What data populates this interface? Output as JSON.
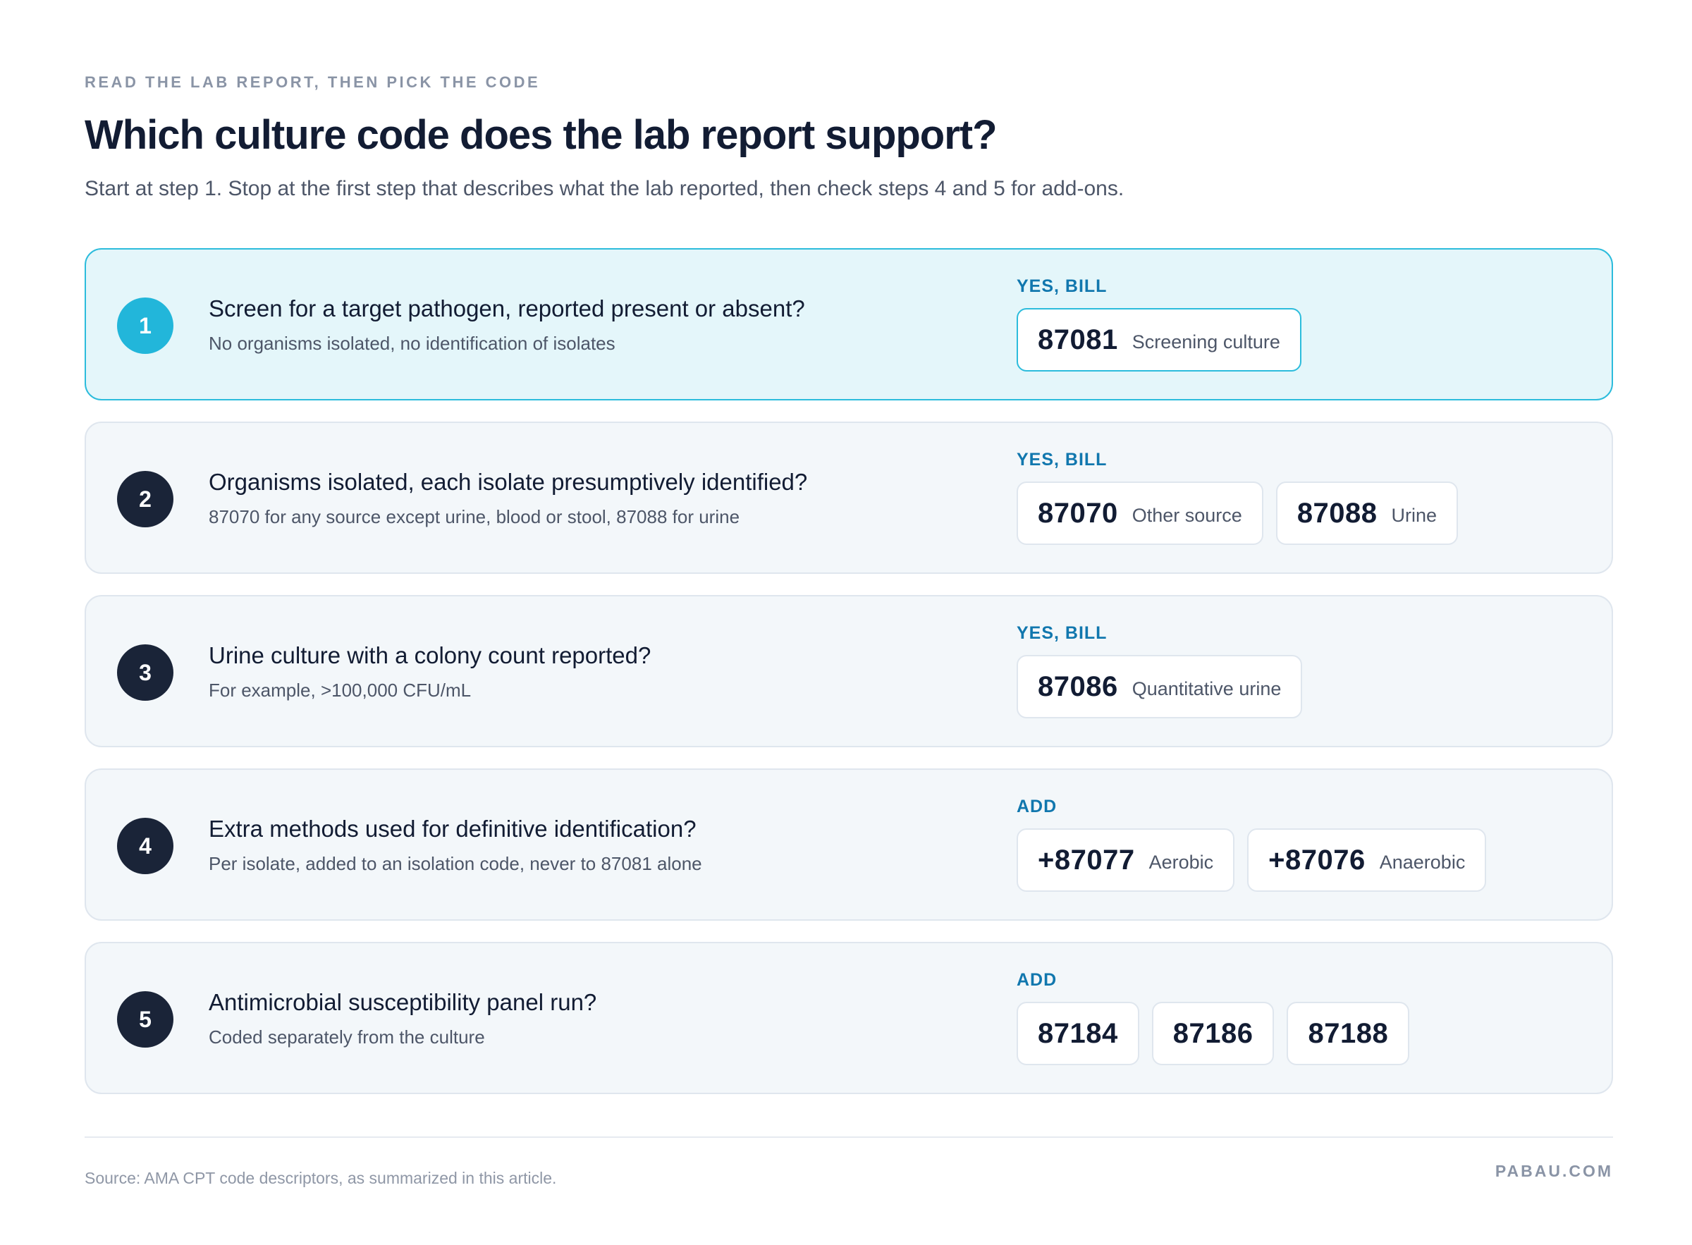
{
  "header": {
    "eyebrow": "READ THE LAB REPORT, THEN PICK THE CODE",
    "title": "Which culture code does the lab report support?",
    "subtitle": "Start at step 1. Stop at the first step that describes what the lab reported, then check steps 4 and 5 for add-ons."
  },
  "steps": [
    {
      "number": "1",
      "question": "Screen for a target pathogen, reported present or absent?",
      "detail": "No organisms isolated, no identification of isolates",
      "verdict": "YES, BILL",
      "highlighted": true,
      "codes": [
        {
          "code": "87081",
          "desc": "Screening culture"
        }
      ]
    },
    {
      "number": "2",
      "question": "Organisms isolated, each isolate presumptively identified?",
      "detail": "87070 for any source except urine, blood or stool, 87088 for urine",
      "verdict": "YES, BILL",
      "codes": [
        {
          "code": "87070",
          "desc": "Other source"
        },
        {
          "code": "87088",
          "desc": "Urine"
        }
      ]
    },
    {
      "number": "3",
      "question": "Urine culture with a colony count reported?",
      "detail": "For example, >100,000 CFU/mL",
      "verdict": "YES, BILL",
      "codes": [
        {
          "code": "87086",
          "desc": "Quantitative urine"
        }
      ]
    },
    {
      "number": "4",
      "question": "Extra methods used for definitive identification?",
      "detail": "Per isolate, added to an isolation code, never to 87081 alone",
      "verdict": "ADD",
      "codes": [
        {
          "code": "+87077",
          "desc": "Aerobic"
        },
        {
          "code": "+87076",
          "desc": "Anaerobic"
        }
      ]
    },
    {
      "number": "5",
      "question": "Antimicrobial susceptibility panel run?",
      "detail": "Coded separately from the culture",
      "verdict": "ADD",
      "codes": [
        {
          "code": "87184"
        },
        {
          "code": "87186"
        },
        {
          "code": "87188"
        }
      ]
    }
  ],
  "footer": {
    "source": "Source: AMA CPT code descriptors, as summarized in this article.",
    "brand": "PABAU.COM"
  },
  "colors": {
    "active_border": "#2cbcdc",
    "active_background": "#e4f6fa",
    "active_number": "#22b6da",
    "number_dark": "#1a2438",
    "verdict_blue": "#1177ae"
  }
}
